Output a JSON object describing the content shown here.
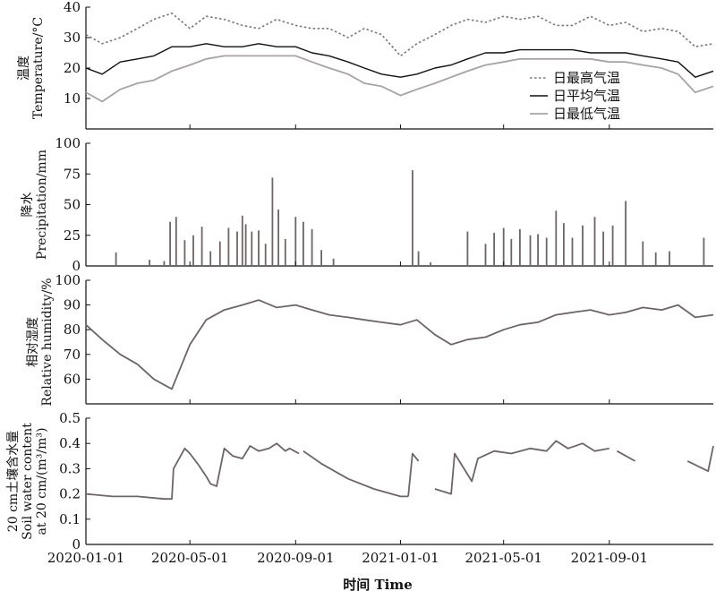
{
  "figure": {
    "x_axis": {
      "label": "时间 Time",
      "ticks": [
        "2020-01-01",
        "2020-05-01",
        "2020-09-01",
        "2021-01-01",
        "2021-05-01",
        "2021-09-01"
      ]
    }
  },
  "chart_data": [
    {
      "type": "line",
      "panel": "temperature",
      "ylabel_zh": "温度",
      "ylabel_en": "Temperature/°C",
      "ylim": [
        0,
        40
      ],
      "yticks": [
        10,
        20,
        30,
        40
      ],
      "x_range": [
        "2020-01-01",
        "2021-12-31"
      ],
      "legend_position": "right-center",
      "colors": {
        "max": "#7f7475",
        "mean": "#111111",
        "min": "#aaa2a2"
      },
      "series": [
        {
          "name": "日最高气温",
          "style": "dotted",
          "x": [
            "2020-01-01",
            "2020-01-20",
            "2020-02-10",
            "2020-03-01",
            "2020-03-20",
            "2020-04-10",
            "2020-05-01",
            "2020-05-20",
            "2020-06-10",
            "2020-07-01",
            "2020-07-20",
            "2020-08-10",
            "2020-09-01",
            "2020-09-20",
            "2020-10-10",
            "2020-11-01",
            "2020-11-20",
            "2020-12-10",
            "2021-01-01",
            "2021-01-20",
            "2021-02-10",
            "2021-03-01",
            "2021-03-20",
            "2021-04-10",
            "2021-05-01",
            "2021-05-20",
            "2021-06-10",
            "2021-07-01",
            "2021-07-20",
            "2021-08-10",
            "2021-09-01",
            "2021-09-20",
            "2021-10-10",
            "2021-11-01",
            "2021-11-20",
            "2021-12-10",
            "2021-12-31"
          ],
          "values": [
            31,
            28,
            30,
            33,
            36,
            38,
            33,
            37,
            36,
            34,
            33,
            36,
            34,
            33,
            33,
            30,
            33,
            31,
            24,
            28,
            31,
            34,
            36,
            35,
            37,
            36,
            37,
            34,
            34,
            37,
            34,
            35,
            32,
            33,
            32,
            27,
            28
          ]
        },
        {
          "name": "日平均气温",
          "style": "solid",
          "x": [
            "2020-01-01",
            "2020-01-20",
            "2020-02-10",
            "2020-03-01",
            "2020-03-20",
            "2020-04-10",
            "2020-05-01",
            "2020-05-20",
            "2020-06-10",
            "2020-07-01",
            "2020-07-20",
            "2020-08-10",
            "2020-09-01",
            "2020-09-20",
            "2020-10-10",
            "2020-11-01",
            "2020-11-20",
            "2020-12-10",
            "2021-01-01",
            "2021-01-20",
            "2021-02-10",
            "2021-03-01",
            "2021-03-20",
            "2021-04-10",
            "2021-05-01",
            "2021-05-20",
            "2021-06-10",
            "2021-07-01",
            "2021-07-20",
            "2021-08-10",
            "2021-09-01",
            "2021-09-20",
            "2021-10-10",
            "2021-11-01",
            "2021-11-20",
            "2021-12-10",
            "2021-12-31"
          ],
          "values": [
            20,
            18,
            22,
            23,
            24,
            27,
            27,
            28,
            27,
            27,
            28,
            27,
            27,
            25,
            24,
            22,
            20,
            18,
            17,
            18,
            20,
            21,
            23,
            25,
            25,
            26,
            26,
            26,
            26,
            25,
            25,
            25,
            24,
            23,
            22,
            17,
            19
          ]
        },
        {
          "name": "日最低气温",
          "style": "solid",
          "x": [
            "2020-01-01",
            "2020-01-20",
            "2020-02-10",
            "2020-03-01",
            "2020-03-20",
            "2020-04-10",
            "2020-05-01",
            "2020-05-20",
            "2020-06-10",
            "2020-07-01",
            "2020-07-20",
            "2020-08-10",
            "2020-09-01",
            "2020-09-20",
            "2020-10-10",
            "2020-11-01",
            "2020-11-20",
            "2020-12-10",
            "2021-01-01",
            "2021-01-20",
            "2021-02-10",
            "2021-03-01",
            "2021-03-20",
            "2021-04-10",
            "2021-05-01",
            "2021-05-20",
            "2021-06-10",
            "2021-07-01",
            "2021-07-20",
            "2021-08-10",
            "2021-09-01",
            "2021-09-20",
            "2021-10-10",
            "2021-11-01",
            "2021-11-20",
            "2021-12-10",
            "2021-12-31"
          ],
          "values": [
            12,
            9,
            13,
            15,
            16,
            19,
            21,
            23,
            24,
            24,
            24,
            24,
            24,
            22,
            20,
            18,
            15,
            14,
            11,
            13,
            15,
            17,
            19,
            21,
            22,
            23,
            23,
            23,
            23,
            23,
            22,
            22,
            21,
            20,
            18,
            12,
            14
          ]
        }
      ]
    },
    {
      "type": "bar",
      "panel": "precipitation",
      "ylabel_zh": "降水",
      "ylabel_en": "Precipitation/mm",
      "ylim": [
        0,
        100
      ],
      "yticks": [
        0,
        25,
        50,
        75,
        100
      ],
      "x_range": [
        "2020-01-01",
        "2021-12-31"
      ],
      "color": "#6e6465",
      "x": [
        "2020-02-05",
        "2020-03-15",
        "2020-04-01",
        "2020-04-08",
        "2020-04-15",
        "2020-04-25",
        "2020-05-05",
        "2020-05-15",
        "2020-05-25",
        "2020-06-05",
        "2020-06-15",
        "2020-06-25",
        "2020-07-01",
        "2020-07-05",
        "2020-07-12",
        "2020-07-20",
        "2020-07-28",
        "2020-08-05",
        "2020-08-12",
        "2020-08-20",
        "2020-09-01",
        "2020-09-10",
        "2020-09-20",
        "2020-10-01",
        "2020-10-15",
        "2021-01-15",
        "2021-01-22",
        "2021-02-05",
        "2021-03-20",
        "2021-04-10",
        "2021-04-20",
        "2021-05-01",
        "2021-05-10",
        "2021-05-20",
        "2021-06-01",
        "2021-06-10",
        "2021-06-20",
        "2021-07-01",
        "2021-07-10",
        "2021-07-20",
        "2021-08-01",
        "2021-08-15",
        "2021-08-25",
        "2021-09-05",
        "2021-09-20",
        "2021-10-10",
        "2021-10-25",
        "2021-11-10",
        "2021-12-20"
      ],
      "values": [
        11,
        5,
        4,
        36,
        40,
        21,
        25,
        32,
        12,
        20,
        31,
        28,
        41,
        34,
        28,
        29,
        18,
        72,
        46,
        22,
        40,
        36,
        30,
        13,
        6,
        78,
        12,
        3,
        28,
        18,
        27,
        31,
        22,
        30,
        25,
        26,
        23,
        45,
        35,
        23,
        33,
        40,
        28,
        33,
        53,
        20,
        11,
        12,
        23
      ]
    },
    {
      "type": "line",
      "panel": "relative_humidity",
      "ylabel_zh": "相对湿度",
      "ylabel_en": "Relative humidity/%",
      "ylim": [
        50,
        100
      ],
      "yticks": [
        60,
        70,
        80,
        90,
        100
      ],
      "x_range": [
        "2020-01-01",
        "2021-12-31"
      ],
      "color": "#6e6465",
      "x": [
        "2020-01-01",
        "2020-01-20",
        "2020-02-10",
        "2020-03-01",
        "2020-03-20",
        "2020-04-10",
        "2020-05-01",
        "2020-05-20",
        "2020-06-10",
        "2020-07-01",
        "2020-07-20",
        "2020-08-10",
        "2020-09-01",
        "2020-09-20",
        "2020-10-10",
        "2020-11-01",
        "2020-11-20",
        "2020-12-10",
        "2021-01-01",
        "2021-01-20",
        "2021-02-10",
        "2021-03-01",
        "2021-03-20",
        "2021-04-10",
        "2021-05-01",
        "2021-05-20",
        "2021-06-10",
        "2021-07-01",
        "2021-07-20",
        "2021-08-10",
        "2021-09-01",
        "2021-09-20",
        "2021-10-10",
        "2021-11-01",
        "2021-11-20",
        "2021-12-10",
        "2021-12-31"
      ],
      "values": [
        82,
        76,
        70,
        66,
        60,
        56,
        74,
        84,
        88,
        90,
        92,
        89,
        90,
        88,
        86,
        85,
        84,
        83,
        82,
        84,
        78,
        74,
        76,
        77,
        80,
        82,
        83,
        86,
        87,
        88,
        86,
        87,
        89,
        88,
        90,
        85,
        86
      ]
    },
    {
      "type": "line",
      "panel": "soil_water_content",
      "ylabel_zh": "20 cm土壤含水量",
      "ylabel_en_1": "Soil water content",
      "ylabel_en_2": "at 20 cm/(m³/m³)",
      "ylim": [
        0,
        0.5
      ],
      "yticks": [
        0,
        0.1,
        0.2,
        0.3,
        0.4,
        0.5
      ],
      "x_range": [
        "2020-01-01",
        "2021-12-31"
      ],
      "color": "#6e6465",
      "segments": [
        {
          "x": [
            "2020-01-01",
            "2020-02-01",
            "2020-03-01",
            "2020-04-01",
            "2020-04-10",
            "2020-04-12",
            "2020-04-25",
            "2020-05-01",
            "2020-05-10",
            "2020-05-20",
            "2020-05-25",
            "2020-06-01",
            "2020-06-10",
            "2020-06-20",
            "2020-07-01",
            "2020-07-10",
            "2020-07-20",
            "2020-08-01",
            "2020-08-10",
            "2020-08-20",
            "2020-08-25",
            "2020-09-05"
          ],
          "values": [
            0.2,
            0.19,
            0.19,
            0.18,
            0.18,
            0.3,
            0.38,
            0.36,
            0.32,
            0.27,
            0.24,
            0.23,
            0.38,
            0.35,
            0.34,
            0.39,
            0.37,
            0.38,
            0.4,
            0.37,
            0.38,
            0.36
          ]
        },
        {
          "x": [
            "2020-09-10",
            "2020-10-01",
            "2020-11-01",
            "2020-12-01",
            "2021-01-01",
            "2021-01-10"
          ],
          "values": [
            0.37,
            0.32,
            0.26,
            0.22,
            0.19,
            0.19
          ]
        },
        {
          "x": [
            "2021-01-10",
            "2021-01-15",
            "2021-01-22"
          ],
          "values": [
            0.19,
            0.36,
            0.33
          ]
        },
        {
          "x": [
            "2021-02-10",
            "2021-03-01",
            "2021-03-05",
            "2021-03-25",
            "2021-04-01",
            "2021-04-20",
            "2021-05-10",
            "2021-06-01",
            "2021-06-20",
            "2021-07-01",
            "2021-07-15",
            "2021-08-01",
            "2021-08-15",
            "2021-09-01"
          ],
          "values": [
            0.22,
            0.2,
            0.36,
            0.25,
            0.34,
            0.37,
            0.36,
            0.38,
            0.37,
            0.41,
            0.38,
            0.4,
            0.37,
            0.38
          ]
        },
        {
          "x": [
            "2021-09-10",
            "2021-10-01"
          ],
          "values": [
            0.37,
            0.33
          ]
        },
        {
          "x": [
            "2021-12-01",
            "2021-12-25",
            "2021-12-31"
          ],
          "values": [
            0.33,
            0.29,
            0.39
          ]
        }
      ]
    }
  ]
}
